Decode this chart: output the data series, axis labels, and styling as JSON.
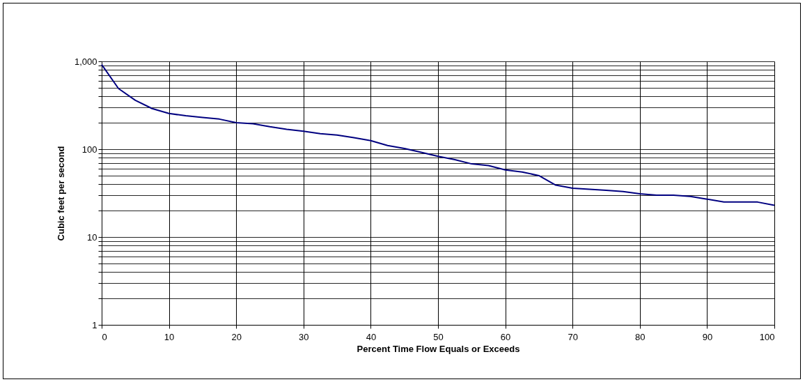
{
  "chart_data": {
    "type": "line",
    "xlabel": "Percent Time Flow Equals or Exceeds",
    "ylabel": "Cubic feet per second",
    "x": [
      0,
      2.5,
      5,
      7.5,
      10,
      12.5,
      15,
      17.5,
      20,
      22.5,
      25,
      27.5,
      30,
      32.5,
      35,
      37.5,
      40,
      42.5,
      45,
      47.5,
      50,
      52.5,
      55,
      57.5,
      60,
      62.5,
      65,
      67.5,
      70,
      72.5,
      75,
      77.5,
      80,
      82.5,
      85,
      87.5,
      90,
      92.5,
      95,
      97.5,
      100
    ],
    "series": [
      {
        "color": "#000080",
        "values": [
          920,
          490,
          360,
          290,
          255,
          240,
          230,
          220,
          200,
          195,
          180,
          168,
          160,
          150,
          145,
          135,
          125,
          110,
          102,
          92,
          83,
          76,
          68,
          65,
          58,
          55,
          50,
          39,
          36,
          35,
          34,
          33,
          31,
          30,
          30,
          29,
          27,
          25,
          25,
          25,
          23
        ]
      }
    ],
    "log": true,
    "xlim": [
      0,
      100
    ],
    "xticks": [
      0,
      10,
      20,
      30,
      40,
      50,
      60,
      70,
      80,
      90,
      100
    ],
    "ylim": [
      1,
      1000
    ],
    "yticks": [
      1,
      {
        "value": 2,
        "label": null
      },
      {
        "value": 3,
        "label": null
      },
      {
        "value": 4,
        "label": null
      },
      {
        "value": 5,
        "label": null
      },
      {
        "value": 6,
        "label": null
      },
      {
        "value": 7,
        "label": null
      },
      {
        "value": 8,
        "label": null
      },
      {
        "value": 9,
        "label": null
      },
      10,
      {
        "value": 20,
        "label": null
      },
      {
        "value": 30,
        "label": null
      },
      {
        "value": 40,
        "label": null
      },
      {
        "value": 50,
        "label": null
      },
      {
        "value": 60,
        "label": null
      },
      {
        "value": 70,
        "label": null
      },
      {
        "value": 80,
        "label": null
      },
      {
        "value": 90,
        "label": null
      },
      100,
      {
        "value": 200,
        "label": null
      },
      {
        "value": 300,
        "label": null
      },
      {
        "value": 400,
        "label": null
      },
      {
        "value": 500,
        "label": null
      },
      {
        "value": 600,
        "label": null
      },
      {
        "value": 700,
        "label": null
      },
      {
        "value": 800,
        "label": null
      },
      {
        "value": 900,
        "label": null
      },
      {
        "value": 1000,
        "label": "1,000"
      }
    ],
    "grid": true,
    "legend": false,
    "marker": "none",
    "line_style": "solid"
  }
}
